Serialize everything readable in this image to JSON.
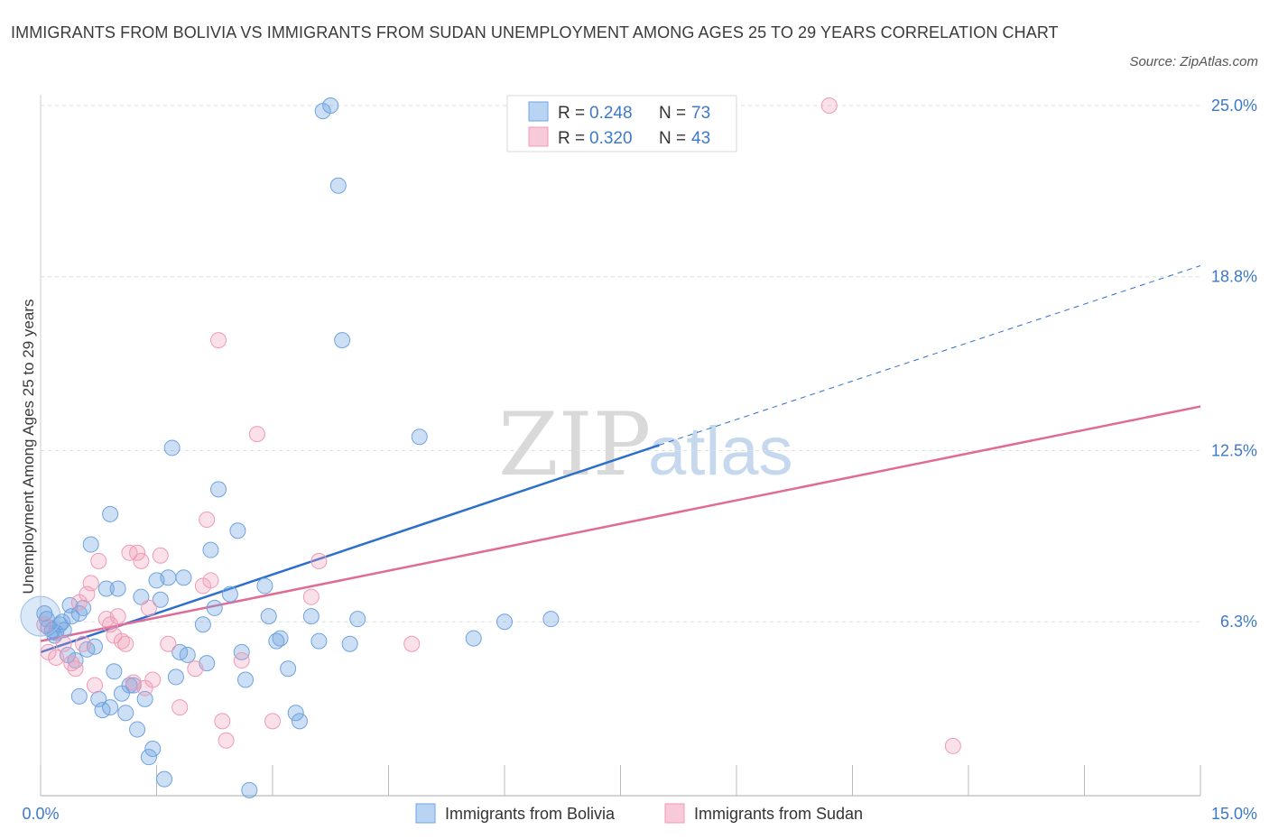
{
  "title": "IMMIGRANTS FROM BOLIVIA VS IMMIGRANTS FROM SUDAN UNEMPLOYMENT AMONG AGES 25 TO 29 YEARS CORRELATION CHART",
  "source": "Source: ZipAtlas.com",
  "watermark": {
    "zip": "ZIP",
    "atlas": "atlas"
  },
  "colors": {
    "bolivia": "#6fa3e0",
    "sudan": "#f09ab5",
    "bolivia_line": "#2d6fcb",
    "sudan_line": "#e06b96",
    "accent": "#3d78c9"
  },
  "legend": {
    "rows": [
      {
        "r_label": "R =",
        "r_value": "0.248",
        "n_label": "N =",
        "n_value": "73"
      },
      {
        "r_label": "R =",
        "r_value": "0.320",
        "n_label": "N =",
        "n_value": "43"
      }
    ]
  },
  "chart_data": {
    "type": "scatter",
    "title": "IMMIGRANTS FROM BOLIVIA VS IMMIGRANTS FROM SUDAN UNEMPLOYMENT AMONG AGES 25 TO 29 YEARS CORRELATION CHART",
    "xlabel": "",
    "ylabel": "Unemployment Among Ages 25 to 29 years",
    "xlim": [
      0,
      15
    ],
    "ylim": [
      0,
      25
    ],
    "x_tick_labels": [
      "0.0%",
      "15.0%"
    ],
    "y_ticks": [
      {
        "value": 6.3,
        "label": "6.3%"
      },
      {
        "value": 12.5,
        "label": "12.5%"
      },
      {
        "value": 18.8,
        "label": "18.8%"
      },
      {
        "value": 25.0,
        "label": "25.0%"
      }
    ],
    "series": [
      {
        "name": "Immigrants from Bolivia",
        "r": 0.248,
        "n": 73,
        "trend": {
          "x0": 0,
          "y0": 5.2,
          "x1": 8.0,
          "y1": 12.7,
          "dash_to_x": 15,
          "dash_to_y": 19.2
        },
        "points": [
          [
            0.05,
            6.6
          ],
          [
            0.1,
            6.1
          ],
          [
            0.15,
            6.0
          ],
          [
            0.2,
            5.9
          ],
          [
            0.25,
            6.2
          ],
          [
            0.3,
            6.0
          ],
          [
            0.35,
            5.1
          ],
          [
            0.4,
            6.5
          ],
          [
            0.45,
            4.9
          ],
          [
            0.5,
            6.6
          ],
          [
            0.5,
            3.6
          ],
          [
            0.55,
            6.8
          ],
          [
            0.6,
            5.3
          ],
          [
            0.65,
            9.1
          ],
          [
            0.7,
            5.4
          ],
          [
            0.75,
            3.5
          ],
          [
            0.8,
            3.1
          ],
          [
            0.85,
            7.5
          ],
          [
            0.9,
            3.2
          ],
          [
            0.9,
            10.2
          ],
          [
            0.95,
            4.5
          ],
          [
            1.0,
            7.5
          ],
          [
            1.05,
            3.7
          ],
          [
            1.1,
            3.0
          ],
          [
            1.15,
            4.0
          ],
          [
            1.2,
            4.0
          ],
          [
            1.25,
            2.4
          ],
          [
            1.3,
            7.2
          ],
          [
            1.35,
            3.5
          ],
          [
            1.4,
            1.4
          ],
          [
            1.45,
            1.7
          ],
          [
            1.5,
            7.8
          ],
          [
            1.55,
            7.1
          ],
          [
            1.6,
            0.6
          ],
          [
            1.65,
            7.9
          ],
          [
            1.7,
            12.6
          ],
          [
            1.75,
            4.3
          ],
          [
            1.8,
            5.2
          ],
          [
            1.85,
            7.9
          ],
          [
            1.9,
            5.1
          ],
          [
            2.1,
            6.2
          ],
          [
            2.15,
            4.8
          ],
          [
            2.2,
            8.9
          ],
          [
            2.25,
            6.8
          ],
          [
            2.3,
            11.1
          ],
          [
            2.45,
            7.3
          ],
          [
            2.55,
            9.6
          ],
          [
            2.6,
            5.2
          ],
          [
            2.65,
            4.2
          ],
          [
            2.7,
            0.2
          ],
          [
            2.9,
            7.6
          ],
          [
            2.95,
            6.5
          ],
          [
            3.05,
            5.6
          ],
          [
            3.1,
            5.7
          ],
          [
            3.2,
            4.6
          ],
          [
            3.3,
            3.0
          ],
          [
            3.35,
            2.7
          ],
          [
            3.5,
            6.5
          ],
          [
            3.6,
            5.6
          ],
          [
            3.65,
            24.8
          ],
          [
            3.75,
            25.0
          ],
          [
            3.85,
            22.1
          ],
          [
            3.9,
            16.5
          ],
          [
            4.0,
            5.5
          ],
          [
            4.1,
            6.4
          ],
          [
            4.9,
            13.0
          ],
          [
            5.6,
            5.7
          ],
          [
            6.0,
            6.3
          ],
          [
            6.6,
            6.4
          ],
          [
            0.08,
            6.4
          ],
          [
            0.18,
            5.8
          ],
          [
            0.28,
            6.3
          ],
          [
            0.38,
            6.9
          ]
        ]
      },
      {
        "name": "Immigrants from Sudan",
        "r": 0.32,
        "n": 43,
        "trend": {
          "x0": 0,
          "y0": 5.6,
          "x1": 15,
          "y1": 14.1
        },
        "points": [
          [
            0.05,
            6.2
          ],
          [
            0.1,
            5.2
          ],
          [
            0.2,
            5.0
          ],
          [
            0.3,
            5.5
          ],
          [
            0.4,
            4.8
          ],
          [
            0.45,
            4.6
          ],
          [
            0.5,
            7.0
          ],
          [
            0.55,
            5.5
          ],
          [
            0.6,
            7.3
          ],
          [
            0.65,
            7.7
          ],
          [
            0.7,
            4.0
          ],
          [
            0.75,
            8.5
          ],
          [
            0.85,
            6.4
          ],
          [
            0.9,
            6.2
          ],
          [
            0.95,
            5.8
          ],
          [
            1.0,
            6.5
          ],
          [
            1.05,
            5.6
          ],
          [
            1.1,
            5.5
          ],
          [
            1.15,
            8.8
          ],
          [
            1.2,
            4.1
          ],
          [
            1.25,
            8.8
          ],
          [
            1.3,
            8.5
          ],
          [
            1.35,
            3.9
          ],
          [
            1.4,
            6.8
          ],
          [
            1.45,
            4.2
          ],
          [
            1.55,
            8.7
          ],
          [
            1.65,
            5.5
          ],
          [
            1.8,
            3.2
          ],
          [
            2.0,
            4.6
          ],
          [
            2.1,
            7.6
          ],
          [
            2.15,
            10.0
          ],
          [
            2.2,
            7.8
          ],
          [
            2.3,
            16.5
          ],
          [
            2.35,
            2.7
          ],
          [
            2.4,
            2.0
          ],
          [
            2.6,
            4.9
          ],
          [
            2.8,
            13.1
          ],
          [
            3.0,
            2.7
          ],
          [
            3.5,
            7.2
          ],
          [
            3.6,
            8.5
          ],
          [
            4.8,
            5.5
          ],
          [
            10.2,
            25.0
          ],
          [
            11.8,
            1.8
          ]
        ]
      }
    ]
  },
  "bottom_legend": [
    "Immigrants from Bolivia",
    "Immigrants from Sudan"
  ]
}
